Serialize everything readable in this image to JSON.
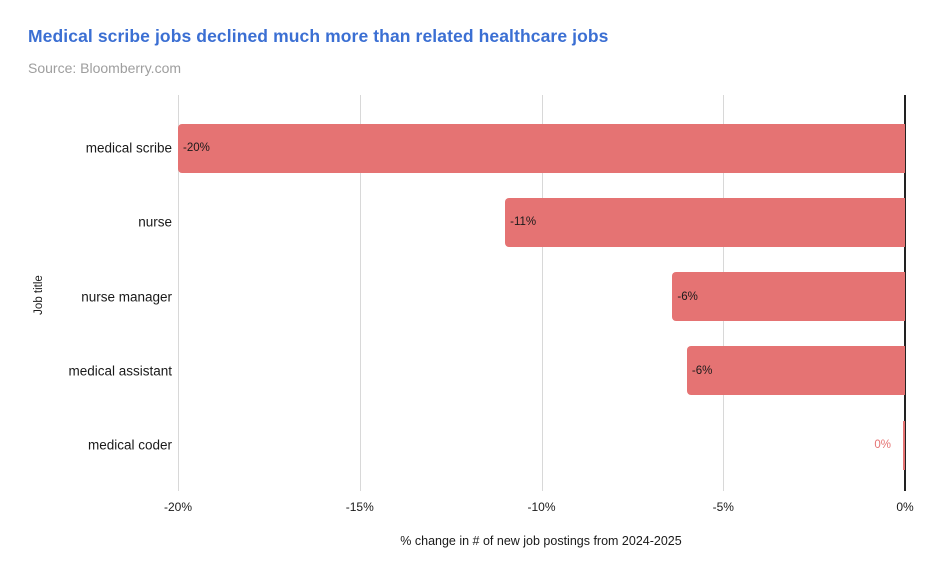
{
  "chart_data": {
    "type": "bar",
    "orientation": "horizontal",
    "title": "Medical scribe jobs declined much more than related healthcare jobs",
    "subtitle": "Source: Bloomberry.com",
    "categories": [
      "medical scribe",
      "nurse",
      "nurse manager",
      "medical assistant",
      "medical coder"
    ],
    "values": [
      -20,
      -11,
      -6.4,
      -6,
      -0.05
    ],
    "value_labels": [
      "-20%",
      "-11%",
      "-6%",
      "-6%",
      "0%"
    ],
    "xlabel": "% change in # of new job postings from 2024-2025",
    "ylabel": "Job title",
    "xlim": [
      -20,
      0
    ],
    "x_tick_values": [
      -20,
      -15,
      -10,
      -5,
      0
    ],
    "x_tick_labels": [
      "-20%",
      "-15%",
      "-10%",
      "-5%",
      "0%"
    ],
    "grid": "vertical",
    "legend": false,
    "colors": {
      "bar": "#E57373",
      "title": "#3B6FD3",
      "source_text": "#9E9E9E",
      "grid": "#D8D8D8",
      "zero_axis": "#222222",
      "value_label_inside": "#1a1a1a",
      "value_label_outside": "#E57373"
    }
  }
}
